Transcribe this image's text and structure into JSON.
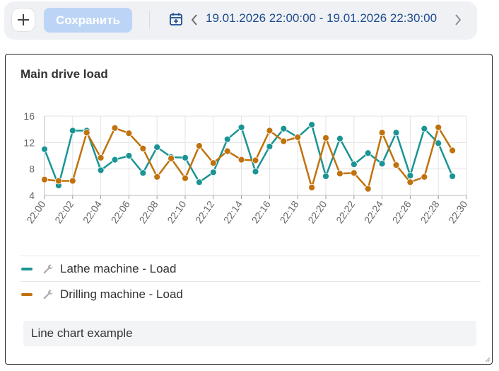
{
  "toolbar": {
    "add_icon": "plus-icon",
    "save_label": "Сохранить",
    "calendar_icon": "calendar-icon",
    "date_range": "19.01.2026 22:00:00 - 19.01.2026 22:30:00"
  },
  "card": {
    "title": "Main drive load",
    "description": "Line chart example"
  },
  "colors": {
    "lathe": "#1a9494",
    "drilling": "#c0720c",
    "accent_blue": "#1e4b8f",
    "save_disabled": "#bcd5f6"
  },
  "chart_data": {
    "type": "line",
    "title": "Main drive load",
    "xlabel": "",
    "ylabel": "",
    "x": [
      "22:00",
      "22:01",
      "22:02",
      "22:03",
      "22:04",
      "22:05",
      "22:06",
      "22:07",
      "22:08",
      "22:09",
      "22:10",
      "22:11",
      "22:12",
      "22:13",
      "22:14",
      "22:15",
      "22:16",
      "22:17",
      "22:18",
      "22:19",
      "22:20",
      "22:21",
      "22:22",
      "22:23",
      "22:24",
      "22:25",
      "22:26",
      "22:27",
      "22:28",
      "22:29",
      "22:30"
    ],
    "x_tick_labels": [
      "22:00",
      "22:02",
      "22:04",
      "22:06",
      "22:08",
      "22:10",
      "22:12",
      "22:14",
      "22:16",
      "22:18",
      "22:20",
      "22:22",
      "22:24",
      "22:26",
      "22:28",
      "22:30"
    ],
    "ylim": [
      4,
      16
    ],
    "y_ticks": [
      4,
      8,
      12,
      16
    ],
    "grid": true,
    "legend_position": "bottom",
    "series": [
      {
        "name": "Lathe machine - Load",
        "color": "#1a9494",
        "values": [
          11.0,
          5.5,
          13.8,
          13.8,
          7.8,
          9.4,
          10.0,
          7.4,
          11.3,
          9.8,
          9.7,
          6.0,
          7.5,
          12.5,
          14.3,
          7.6,
          11.4,
          14.1,
          12.8,
          14.7,
          6.9,
          12.6,
          8.7,
          10.4,
          8.8,
          13.5,
          7.0,
          14.1,
          11.9,
          6.9,
          null
        ]
      },
      {
        "name": "Drilling machine - Load",
        "color": "#c0720c",
        "values": [
          6.4,
          6.2,
          6.2,
          13.5,
          9.7,
          14.2,
          13.4,
          11.1,
          6.8,
          9.6,
          6.6,
          11.5,
          8.9,
          10.7,
          9.4,
          9.3,
          13.8,
          12.2,
          12.8,
          5.2,
          12.7,
          7.3,
          7.4,
          5.0,
          13.5,
          8.6,
          6.0,
          6.8,
          14.3,
          10.8,
          null
        ]
      }
    ]
  },
  "legend_icon": "wrench-icon"
}
